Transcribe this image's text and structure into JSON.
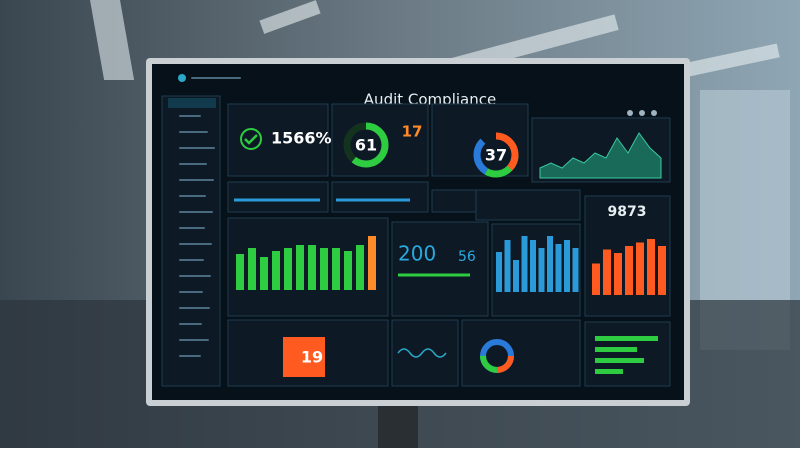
{
  "header": {
    "title": "Audit Compliance"
  },
  "kpi": {
    "rate": "1566%"
  },
  "donuts": [
    {
      "value": 61,
      "count": 17
    },
    {
      "value": 37
    }
  ],
  "trend": {
    "values": [
      2,
      3,
      2,
      4,
      3,
      5,
      4,
      8,
      5,
      9,
      6,
      4
    ]
  },
  "compliance": {
    "values": [
      12,
      14,
      11,
      13,
      14,
      15,
      15,
      14,
      14,
      13,
      15,
      18
    ]
  },
  "metrics": {
    "total": 200,
    "flagged": 56
  },
  "issues": {
    "values": [
      10,
      13,
      8,
      14,
      13,
      11,
      14,
      12,
      13,
      11
    ]
  },
  "risk": {
    "score": 9873,
    "values": [
      9,
      13,
      12,
      14,
      15,
      16,
      14
    ]
  },
  "alerts": {
    "count": 19
  },
  "progress": {
    "values": [
      9,
      6,
      7,
      4
    ]
  }
}
